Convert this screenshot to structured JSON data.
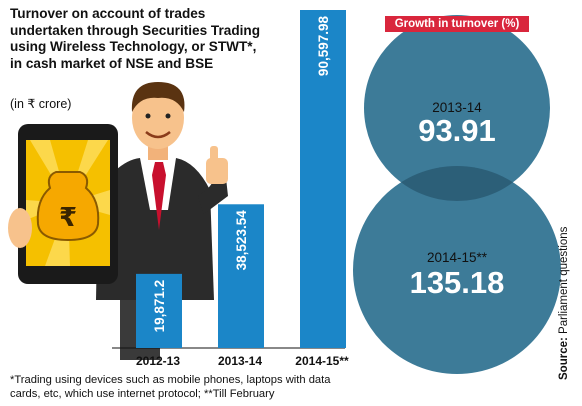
{
  "header": {
    "title": "Turnover on account of trades undertaken through Securities Trading using Wireless Technology, or STWT*, in cash market of NSE and BSE",
    "unit": "(in ₹ crore)"
  },
  "growth": {
    "label": "Growth in turnover (%)",
    "items": [
      {
        "year": "2013-14",
        "value": "93.91"
      },
      {
        "year": "2014-15**",
        "value": "135.18"
      }
    ]
  },
  "footnote": "*Trading using devices such as mobile phones, laptops with data cards, etc, which use internet protocol; **Till February",
  "source": {
    "label": "Source:",
    "text": "Parliament questions"
  },
  "colors": {
    "bar": "#1b86c8",
    "circle": "#3d7b98",
    "overlap": "#2c5f78",
    "badge": "#d9263c"
  },
  "chart_data": [
    {
      "type": "bar",
      "title": "Turnover on account of trades undertaken through Securities Trading using Wireless Technology, or STWT*, in cash market of NSE and BSE",
      "ylabel": "(in ₹ crore)",
      "categories": [
        "2012-13",
        "2013-14",
        "2014-15**"
      ],
      "values": [
        19871.2,
        38523.54,
        90597.98
      ],
      "value_labels": [
        "19,871.2",
        "38,523.54",
        "90,597.98"
      ],
      "ylim": [
        0,
        90597.98
      ]
    },
    {
      "type": "bubble",
      "title": "Growth in turnover (%)",
      "categories": [
        "2013-14",
        "2014-15**"
      ],
      "values": [
        93.91,
        135.18
      ]
    }
  ]
}
